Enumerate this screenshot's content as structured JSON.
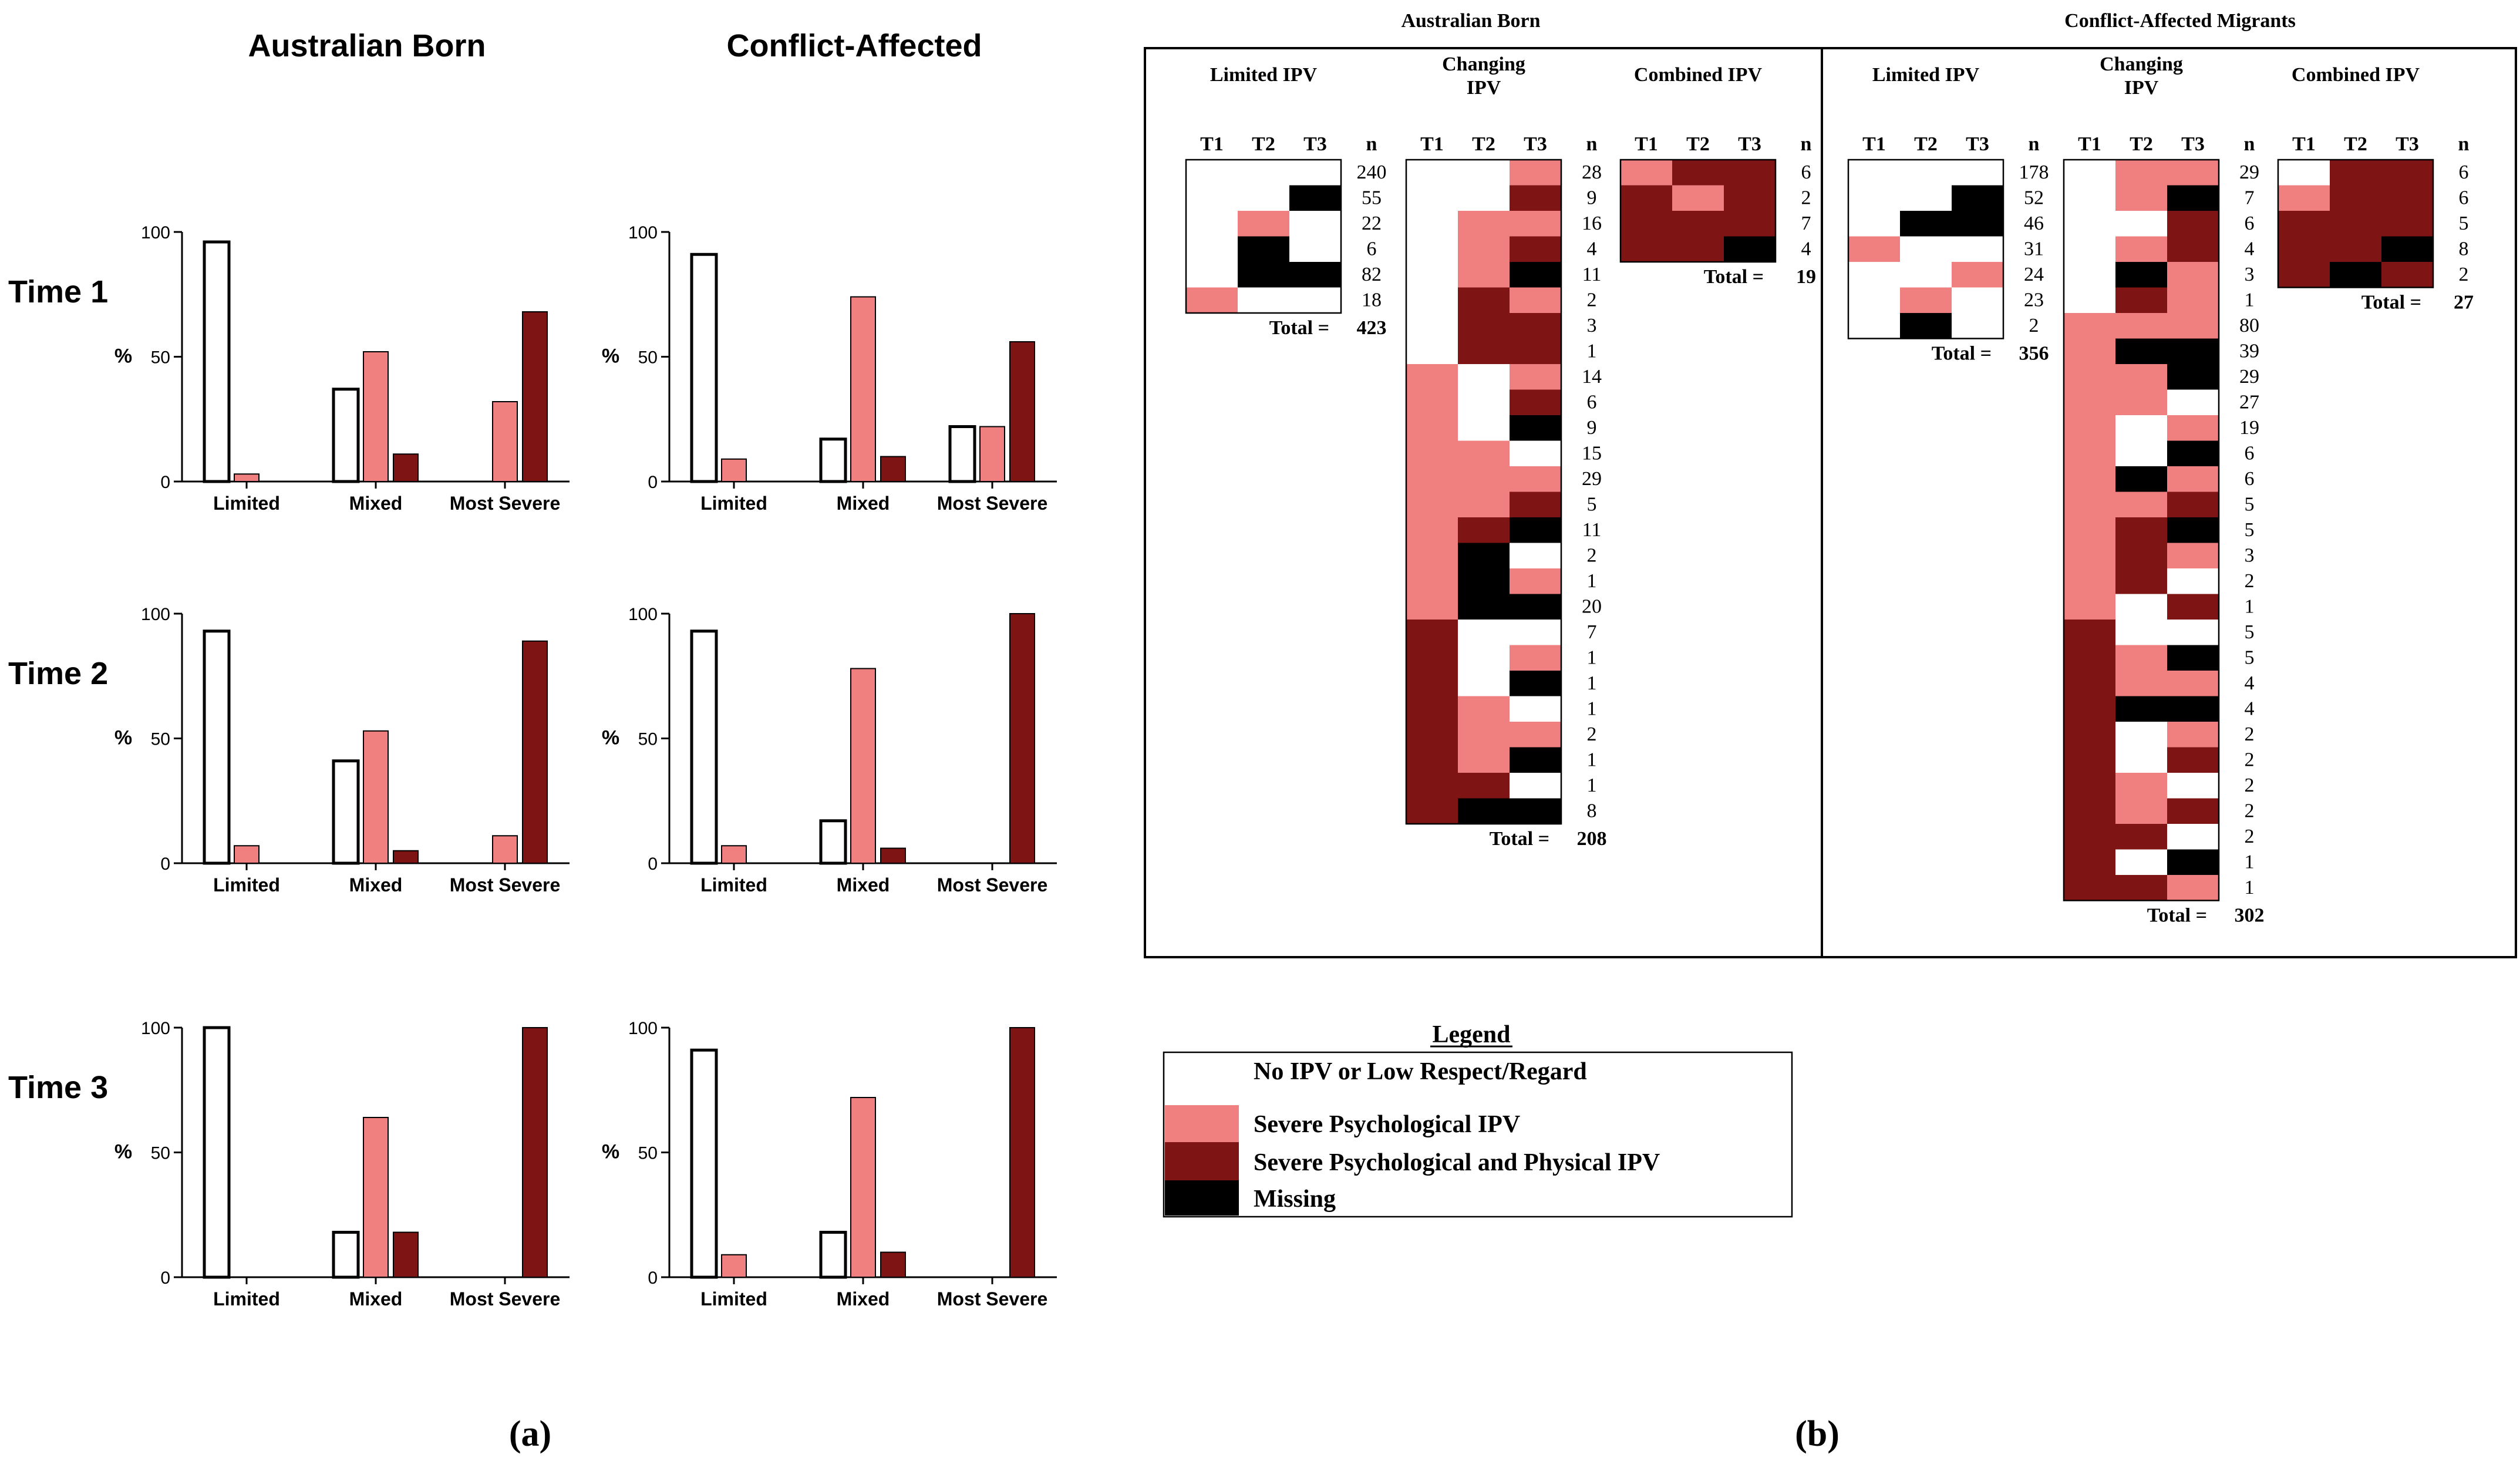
{
  "panel_labels": [
    "(a)",
    "(b)"
  ],
  "colors": {
    "none": "#ffffff",
    "psych": "#f08080",
    "phys": "#7e1414",
    "missing": "#000000",
    "bar_outline": "#000000"
  },
  "chart_data": [
    {
      "type": "bar",
      "group": "Australian Born",
      "row_label": "Time 1",
      "ylabel": "%",
      "ylim": [
        0,
        100
      ],
      "yticks": [
        0,
        50,
        100
      ],
      "categories": [
        "Limited",
        "Mixed",
        "Most Severe"
      ],
      "series": [
        {
          "values": [
            96,
            37,
            0
          ],
          "color": "none"
        },
        {
          "values": [
            3,
            52,
            32
          ],
          "color": "psych"
        },
        {
          "values": [
            0,
            11,
            68
          ],
          "color": "phys"
        }
      ]
    },
    {
      "type": "bar",
      "group": "Conflict-Affected",
      "row_label": "Time 1",
      "ylabel": "%",
      "ylim": [
        0,
        100
      ],
      "yticks": [
        0,
        50,
        100
      ],
      "categories": [
        "Limited",
        "Mixed",
        "Most Severe"
      ],
      "series": [
        {
          "values": [
            91,
            17,
            22
          ],
          "color": "none"
        },
        {
          "values": [
            9,
            74,
            22
          ],
          "color": "psych"
        },
        {
          "values": [
            0,
            10,
            56
          ],
          "color": "phys"
        }
      ]
    },
    {
      "type": "bar",
      "group": "Australian Born",
      "row_label": "Time 2",
      "ylabel": "%",
      "ylim": [
        0,
        100
      ],
      "yticks": [
        0,
        50,
        100
      ],
      "categories": [
        "Limited",
        "Mixed",
        "Most Severe"
      ],
      "series": [
        {
          "values": [
            93,
            41,
            0
          ],
          "color": "none"
        },
        {
          "values": [
            7,
            53,
            11
          ],
          "color": "psych"
        },
        {
          "values": [
            0,
            5,
            89
          ],
          "color": "phys"
        }
      ]
    },
    {
      "type": "bar",
      "group": "Conflict-Affected",
      "row_label": "Time 2",
      "ylabel": "%",
      "ylim": [
        0,
        100
      ],
      "yticks": [
        0,
        50,
        100
      ],
      "categories": [
        "Limited",
        "Mixed",
        "Most Severe"
      ],
      "series": [
        {
          "values": [
            93,
            17,
            0
          ],
          "color": "none"
        },
        {
          "values": [
            7,
            78,
            0
          ],
          "color": "psych"
        },
        {
          "values": [
            0,
            6,
            100
          ],
          "color": "phys"
        }
      ]
    },
    {
      "type": "bar",
      "group": "Australian Born",
      "row_label": "Time 3",
      "ylabel": "%",
      "ylim": [
        0,
        100
      ],
      "yticks": [
        0,
        50,
        100
      ],
      "categories": [
        "Limited",
        "Mixed",
        "Most Severe"
      ],
      "series": [
        {
          "values": [
            100,
            18,
            0
          ],
          "color": "none"
        },
        {
          "values": [
            0,
            64,
            0
          ],
          "color": "psych"
        },
        {
          "values": [
            0,
            18,
            100
          ],
          "color": "phys"
        }
      ]
    },
    {
      "type": "bar",
      "group": "Conflict-Affected",
      "row_label": "Time 3",
      "ylabel": "%",
      "ylim": [
        0,
        100
      ],
      "yticks": [
        0,
        50,
        100
      ],
      "categories": [
        "Limited",
        "Mixed",
        "Most Severe"
      ],
      "series": [
        {
          "values": [
            91,
            18,
            0
          ],
          "color": "none"
        },
        {
          "values": [
            9,
            72,
            0
          ],
          "color": "psych"
        },
        {
          "values": [
            0,
            10,
            100
          ],
          "color": "phys"
        }
      ]
    },
    {
      "type": "heatmap",
      "group": "Australian Born",
      "columns": [
        "T1",
        "T2",
        "T3"
      ],
      "n_label": "n",
      "total_label": "Total =",
      "blocks": [
        {
          "title": "Limited IPV",
          "total": 423,
          "rows": [
            {
              "cells": [
                "none",
                "none",
                "none"
              ],
              "n": 240
            },
            {
              "cells": [
                "none",
                "none",
                "missing"
              ],
              "n": 55
            },
            {
              "cells": [
                "none",
                "psych",
                "none"
              ],
              "n": 22
            },
            {
              "cells": [
                "none",
                "missing",
                "none"
              ],
              "n": 6
            },
            {
              "cells": [
                "none",
                "missing",
                "missing"
              ],
              "n": 82
            },
            {
              "cells": [
                "psych",
                "none",
                "none"
              ],
              "n": 18
            }
          ]
        },
        {
          "title": "Changing IPV",
          "total": 208,
          "rows": [
            {
              "cells": [
                "none",
                "none",
                "psych"
              ],
              "n": 28
            },
            {
              "cells": [
                "none",
                "none",
                "phys"
              ],
              "n": 9
            },
            {
              "cells": [
                "none",
                "psych",
                "psych"
              ],
              "n": 16
            },
            {
              "cells": [
                "none",
                "psych",
                "phys"
              ],
              "n": 4
            },
            {
              "cells": [
                "none",
                "psych",
                "missing"
              ],
              "n": 11
            },
            {
              "cells": [
                "none",
                "phys",
                "psych"
              ],
              "n": 2
            },
            {
              "cells": [
                "none",
                "phys",
                "phys"
              ],
              "n": 3
            },
            {
              "cells": [
                "none",
                "phys",
                "phys"
              ],
              "n": 1
            },
            {
              "cells": [
                "psych",
                "none",
                "psych"
              ],
              "n": 14
            },
            {
              "cells": [
                "psych",
                "none",
                "phys"
              ],
              "n": 6
            },
            {
              "cells": [
                "psych",
                "none",
                "missing"
              ],
              "n": 9
            },
            {
              "cells": [
                "psych",
                "psych",
                "none"
              ],
              "n": 15
            },
            {
              "cells": [
                "psych",
                "psych",
                "psych"
              ],
              "n": 29
            },
            {
              "cells": [
                "psych",
                "psych",
                "phys"
              ],
              "n": 5
            },
            {
              "cells": [
                "psych",
                "phys",
                "missing"
              ],
              "n": 11
            },
            {
              "cells": [
                "psych",
                "missing",
                "none"
              ],
              "n": 2
            },
            {
              "cells": [
                "psych",
                "missing",
                "psych"
              ],
              "n": 1
            },
            {
              "cells": [
                "psych",
                "missing",
                "missing"
              ],
              "n": 20
            },
            {
              "cells": [
                "phys",
                "none",
                "none"
              ],
              "n": 7
            },
            {
              "cells": [
                "phys",
                "none",
                "psych"
              ],
              "n": 1
            },
            {
              "cells": [
                "phys",
                "none",
                "missing"
              ],
              "n": 1
            },
            {
              "cells": [
                "phys",
                "psych",
                "none"
              ],
              "n": 1
            },
            {
              "cells": [
                "phys",
                "psych",
                "psych"
              ],
              "n": 2
            },
            {
              "cells": [
                "phys",
                "psych",
                "missing"
              ],
              "n": 1
            },
            {
              "cells": [
                "phys",
                "phys",
                "none"
              ],
              "n": 1
            },
            {
              "cells": [
                "phys",
                "missing",
                "missing"
              ],
              "n": 8
            }
          ]
        },
        {
          "title": "Combined IPV",
          "total": 19,
          "rows": [
            {
              "cells": [
                "psych",
                "phys",
                "phys"
              ],
              "n": 6
            },
            {
              "cells": [
                "phys",
                "psych",
                "phys"
              ],
              "n": 2
            },
            {
              "cells": [
                "phys",
                "phys",
                "phys"
              ],
              "n": 7
            },
            {
              "cells": [
                "phys",
                "phys",
                "missing"
              ],
              "n": 4
            }
          ]
        }
      ]
    },
    {
      "type": "heatmap",
      "group": "Conflict-Affected Migrants",
      "columns": [
        "T1",
        "T2",
        "T3"
      ],
      "n_label": "n",
      "total_label": "Total =",
      "blocks": [
        {
          "title": "Limited IPV",
          "total": 356,
          "rows": [
            {
              "cells": [
                "none",
                "none",
                "none"
              ],
              "n": 178
            },
            {
              "cells": [
                "none",
                "none",
                "missing"
              ],
              "n": 52
            },
            {
              "cells": [
                "none",
                "missing",
                "missing"
              ],
              "n": 46
            },
            {
              "cells": [
                "psych",
                "none",
                "none"
              ],
              "n": 31
            },
            {
              "cells": [
                "none",
                "none",
                "psych"
              ],
              "n": 24
            },
            {
              "cells": [
                "none",
                "psych",
                "none"
              ],
              "n": 23
            },
            {
              "cells": [
                "none",
                "missing",
                "none"
              ],
              "n": 2
            }
          ]
        },
        {
          "title": "Changing IPV",
          "total": 302,
          "rows": [
            {
              "cells": [
                "none",
                "psych",
                "psych"
              ],
              "n": 29
            },
            {
              "cells": [
                "none",
                "psych",
                "missing"
              ],
              "n": 7
            },
            {
              "cells": [
                "none",
                "none",
                "phys"
              ],
              "n": 6
            },
            {
              "cells": [
                "none",
                "psych",
                "phys"
              ],
              "n": 4
            },
            {
              "cells": [
                "none",
                "missing",
                "psych"
              ],
              "n": 3
            },
            {
              "cells": [
                "none",
                "phys",
                "psych"
              ],
              "n": 1
            },
            {
              "cells": [
                "psych",
                "psych",
                "psych"
              ],
              "n": 80
            },
            {
              "cells": [
                "psych",
                "missing",
                "missing"
              ],
              "n": 39
            },
            {
              "cells": [
                "psych",
                "psych",
                "missing"
              ],
              "n": 29
            },
            {
              "cells": [
                "psych",
                "psych",
                "none"
              ],
              "n": 27
            },
            {
              "cells": [
                "psych",
                "none",
                "psych"
              ],
              "n": 19
            },
            {
              "cells": [
                "psych",
                "none",
                "missing"
              ],
              "n": 6
            },
            {
              "cells": [
                "psych",
                "missing",
                "psych"
              ],
              "n": 6
            },
            {
              "cells": [
                "psych",
                "psych",
                "phys"
              ],
              "n": 5
            },
            {
              "cells": [
                "psych",
                "phys",
                "missing"
              ],
              "n": 5
            },
            {
              "cells": [
                "psych",
                "phys",
                "psych"
              ],
              "n": 3
            },
            {
              "cells": [
                "psych",
                "phys",
                "none"
              ],
              "n": 2
            },
            {
              "cells": [
                "psych",
                "none",
                "phys"
              ],
              "n": 1
            },
            {
              "cells": [
                "phys",
                "none",
                "none"
              ],
              "n": 5
            },
            {
              "cells": [
                "phys",
                "psych",
                "missing"
              ],
              "n": 5
            },
            {
              "cells": [
                "phys",
                "psych",
                "psych"
              ],
              "n": 4
            },
            {
              "cells": [
                "phys",
                "missing",
                "missing"
              ],
              "n": 4
            },
            {
              "cells": [
                "phys",
                "none",
                "psych"
              ],
              "n": 2
            },
            {
              "cells": [
                "phys",
                "none",
                "phys"
              ],
              "n": 2
            },
            {
              "cells": [
                "phys",
                "psych",
                "none"
              ],
              "n": 2
            },
            {
              "cells": [
                "phys",
                "psych",
                "phys"
              ],
              "n": 2
            },
            {
              "cells": [
                "phys",
                "phys",
                "none"
              ],
              "n": 2
            },
            {
              "cells": [
                "phys",
                "none",
                "missing"
              ],
              "n": 1
            },
            {
              "cells": [
                "phys",
                "phys",
                "psych"
              ],
              "n": 1
            }
          ]
        },
        {
          "title": "Combined IPV",
          "total": 27,
          "rows": [
            {
              "cells": [
                "none",
                "phys",
                "phys"
              ],
              "n": 6
            },
            {
              "cells": [
                "psych",
                "phys",
                "phys"
              ],
              "n": 6
            },
            {
              "cells": [
                "phys",
                "phys",
                "phys"
              ],
              "n": 5
            },
            {
              "cells": [
                "phys",
                "phys",
                "missing"
              ],
              "n": 8
            },
            {
              "cells": [
                "phys",
                "missing",
                "phys"
              ],
              "n": 2
            }
          ]
        }
      ]
    }
  ],
  "legend": {
    "title": "Legend",
    "items": [
      {
        "label": "No IPV or Low Respect/Regard",
        "color": "none"
      },
      {
        "label": "Severe Psychological IPV",
        "color": "psych"
      },
      {
        "label": "Severe Psychological and Physical IPV",
        "color": "phys"
      },
      {
        "label": "Missing",
        "color": "missing"
      }
    ]
  }
}
